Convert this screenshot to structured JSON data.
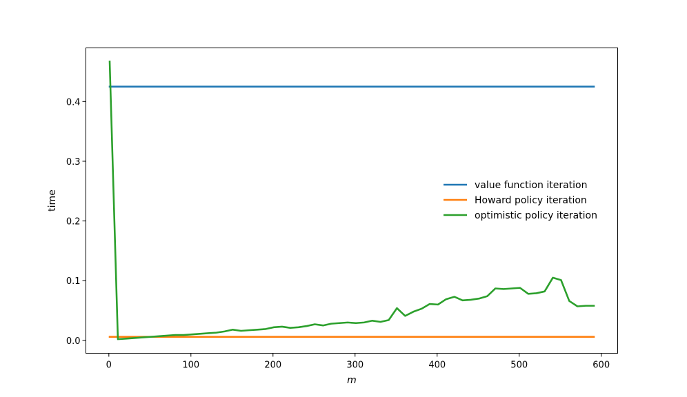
{
  "chart_data": {
    "type": "line",
    "title": "",
    "xlabel": "m",
    "ylabel": "time",
    "xlim": [
      -28,
      620
    ],
    "ylim": [
      -0.0215,
      0.4898
    ],
    "xticks": [
      0,
      100,
      200,
      300,
      400,
      500,
      600
    ],
    "xtick_labels": [
      "0",
      "100",
      "200",
      "300",
      "400",
      "500",
      "600"
    ],
    "yticks": [
      0.0,
      0.1,
      0.2,
      0.3,
      0.4
    ],
    "ytick_labels": [
      "0.0",
      "0.1",
      "0.2",
      "0.3",
      "0.4"
    ],
    "grid": false,
    "legend_position": "center-right",
    "series": [
      {
        "name": "value function iteration",
        "color": "#1f77b4",
        "x": [
          1,
          591
        ],
        "y": [
          0.425,
          0.425
        ]
      },
      {
        "name": "Howard policy iteration",
        "color": "#ff7f0e",
        "x": [
          1,
          591
        ],
        "y": [
          0.006,
          0.006
        ]
      },
      {
        "name": "optimistic policy iteration",
        "color": "#2ca02c",
        "x": [
          1,
          11,
          21,
          31,
          41,
          51,
          61,
          71,
          81,
          91,
          101,
          111,
          121,
          131,
          141,
          151,
          161,
          171,
          181,
          191,
          201,
          211,
          221,
          231,
          241,
          251,
          261,
          271,
          281,
          291,
          301,
          311,
          321,
          331,
          341,
          351,
          361,
          371,
          381,
          391,
          401,
          411,
          421,
          431,
          441,
          451,
          461,
          471,
          481,
          491,
          501,
          511,
          521,
          531,
          541,
          551,
          561,
          571,
          581,
          591
        ],
        "y": [
          0.467,
          0.002,
          0.003,
          0.004,
          0.005,
          0.006,
          0.007,
          0.008,
          0.009,
          0.009,
          0.01,
          0.011,
          0.012,
          0.013,
          0.015,
          0.018,
          0.016,
          0.017,
          0.018,
          0.019,
          0.022,
          0.023,
          0.021,
          0.022,
          0.024,
          0.027,
          0.025,
          0.028,
          0.029,
          0.03,
          0.029,
          0.03,
          0.033,
          0.031,
          0.034,
          0.054,
          0.041,
          0.048,
          0.053,
          0.061,
          0.06,
          0.069,
          0.073,
          0.067,
          0.068,
          0.07,
          0.074,
          0.087,
          0.086,
          0.087,
          0.088,
          0.078,
          0.079,
          0.082,
          0.105,
          0.101,
          0.066,
          0.057,
          0.058,
          0.058
        ]
      }
    ]
  }
}
